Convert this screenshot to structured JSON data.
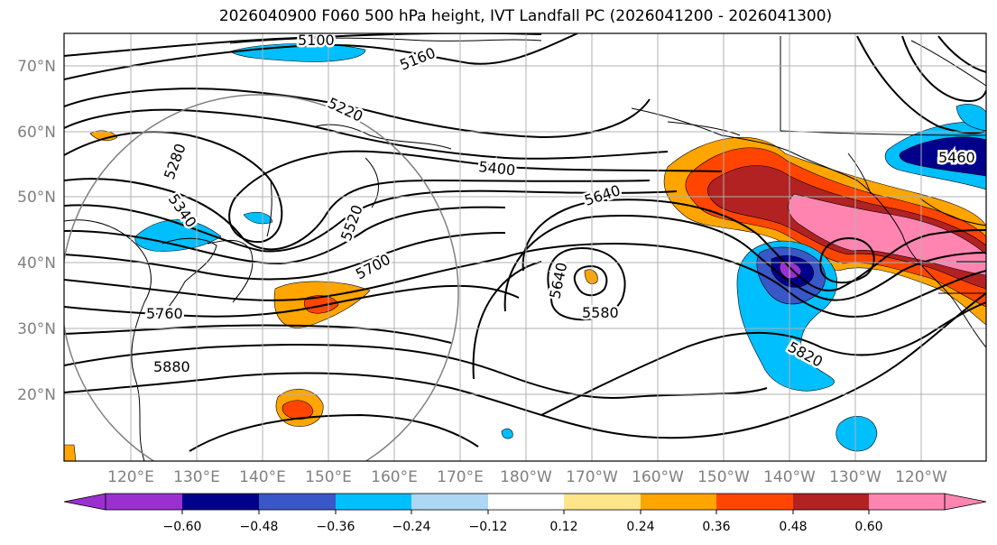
{
  "title": "2026040900 F060 500 hPa height, IVT Landfall PC (2026041200 - 2026041300)",
  "lat_labels": [
    "70°N",
    "60°N",
    "50°N",
    "40°N",
    "30°N",
    "20°N"
  ],
  "lon_labels": [
    "120°E",
    "130°E",
    "140°E",
    "150°E",
    "160°E",
    "170°E",
    "180°W",
    "170°W",
    "160°W",
    "150°W",
    "140°W",
    "130°W",
    "120°W"
  ],
  "contour_labels": [
    "5100",
    "5160",
    "5220",
    "5280",
    "5340",
    "5400",
    "5460",
    "5520",
    "5580",
    "5640",
    "5700",
    "5760",
    "5820",
    "5880"
  ],
  "colorbar": {
    "colors": [
      "#9b30d0",
      "#00008b",
      "#3a57c8",
      "#00bfff",
      "#add8f5",
      "#ffffff",
      "#ffe58a",
      "#ffa500",
      "#ff4500",
      "#b22222",
      "#ff85b0"
    ],
    "tick_labels": [
      "−0.60",
      "−0.48",
      "−0.36",
      "−0.24",
      "−0.12",
      "0.12",
      "0.24",
      "0.36",
      "0.48",
      "0.60"
    ]
  },
  "colors": {
    "contour": "#000000",
    "grid": "#b0b0b0",
    "coast": "#000000",
    "circle": "#808080"
  }
}
